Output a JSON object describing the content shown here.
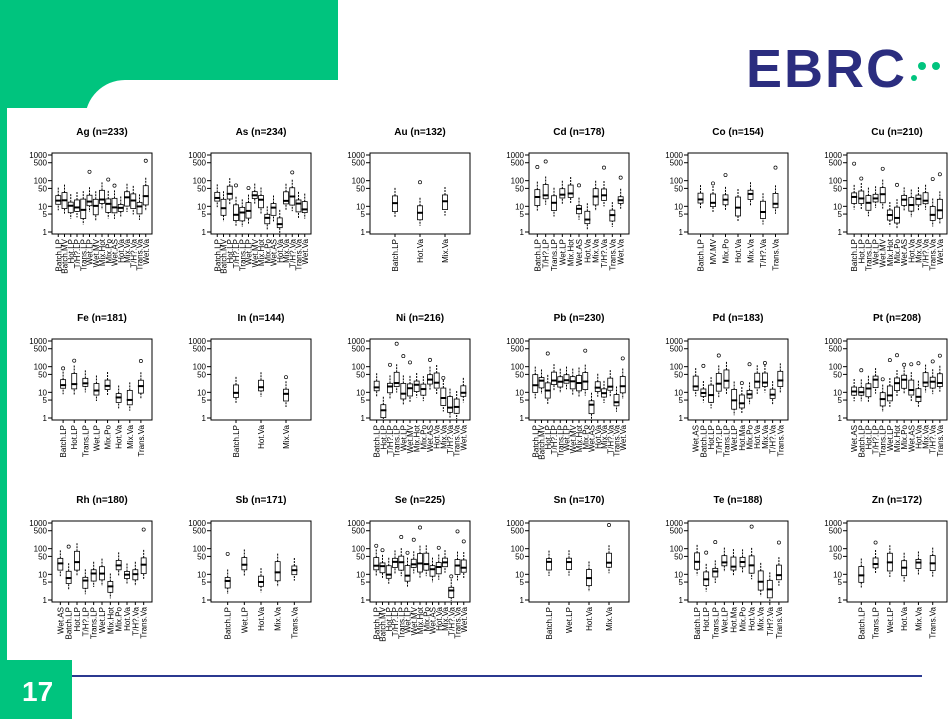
{
  "slide": {
    "page_number": "17"
  },
  "logo": {
    "text": "EBRC",
    "brand_color": "#2b2d7f",
    "accent_color": "#00c47e"
  },
  "colors": {
    "header_green": "#00c47e",
    "footer_line": "#2b3990"
  },
  "chart_data": [
    {
      "type": "boxplot",
      "title": "Ag (n=233)",
      "y_scale": "log",
      "yticks": [
        "1",
        "5",
        "10",
        "50",
        "100",
        "500",
        "1000"
      ],
      "categories": [
        "Batch.LP",
        "Batch.MV",
        "Hot.LP",
        "T/H?.LP",
        "Trans.LP",
        "Wet.LP",
        "Wet.MV",
        "Mix.Hot",
        "Mix.Po",
        "Wet.AS",
        "Hot.Va",
        "Mix.Va",
        "T/H?.Va",
        "Trans.Va",
        "Wet.Va"
      ]
    },
    {
      "type": "boxplot",
      "title": "As (n=234)",
      "y_scale": "log",
      "yticks": [
        "1",
        "5",
        "10",
        "50",
        "100",
        "500",
        "1000"
      ],
      "categories": [
        "Batch.LP",
        "Batch.MV",
        "Hot.LP",
        "T/H?.LP",
        "Trans.LP",
        "Wet.LP",
        "Wet.MV",
        "Mix.Hot",
        "Mix.Po",
        "Wet.AS",
        "Hot.Va",
        "Mix.Va",
        "T/H?.Va",
        "Trans.Va",
        "Wet.Va"
      ]
    },
    {
      "type": "boxplot",
      "title": "Au (n=132)",
      "y_scale": "log",
      "yticks": [
        "1",
        "5",
        "10",
        "50",
        "100",
        "500",
        "1000"
      ],
      "categories": [
        "Batch.LP",
        "Hot.Va",
        "Mix.Va"
      ]
    },
    {
      "type": "boxplot",
      "title": "Cd (n=178)",
      "y_scale": "log",
      "yticks": [
        "1",
        "5",
        "10",
        "50",
        "100",
        "500",
        "1000"
      ],
      "categories": [
        "Batch.LP",
        "T/H?.LP",
        "Trans.LP",
        "Wet.LP",
        "Mix.Hot",
        "Wet.AS",
        "Hot.Va",
        "Mix.Va",
        "T/H?.Va",
        "Trans.Va",
        "Wet.Va"
      ]
    },
    {
      "type": "boxplot",
      "title": "Co (n=154)",
      "y_scale": "log",
      "yticks": [
        "1",
        "5",
        "10",
        "50",
        "100",
        "500",
        "1000"
      ],
      "categories": [
        "Batch.LP",
        "MV.MV",
        "Mix.Po",
        "Hot.Va",
        "Mix.Va",
        "T/H?.Va",
        "Trans.Va"
      ]
    },
    {
      "type": "boxplot",
      "title": "Cu (n=210)",
      "y_scale": "log",
      "yticks": [
        "1",
        "5",
        "10",
        "50",
        "100",
        "500",
        "1000"
      ],
      "categories": [
        "Batch.LP",
        "Hot.LP",
        "Trans.LP",
        "Wet.LP",
        "Wet.MV",
        "Mix.Hot",
        "Mix.Po",
        "Wet.AS",
        "Hot.Va",
        "Mix.Va",
        "T/H?.Va",
        "Trans.Va",
        "Wet.Va"
      ]
    },
    {
      "type": "boxplot",
      "title": "Fe (n=181)",
      "y_scale": "log",
      "yticks": [
        "1",
        "5",
        "10",
        "50",
        "100",
        "500",
        "1000"
      ],
      "categories": [
        "Batch.LP",
        "Hot.LP",
        "Trans.LP",
        "Wet.LP",
        "Mix.Po",
        "Hot.Va",
        "Mix.Va",
        "Trans.Va"
      ]
    },
    {
      "type": "boxplot",
      "title": "In (n=144)",
      "y_scale": "log",
      "yticks": [
        "1",
        "5",
        "10",
        "50",
        "100",
        "500",
        "1000"
      ],
      "categories": [
        "Batch.LP",
        "Hot.Va",
        "Mix.Va"
      ]
    },
    {
      "type": "boxplot",
      "title": "Ni (n=216)",
      "y_scale": "log",
      "yticks": [
        "1",
        "5",
        "10",
        "50",
        "100",
        "500",
        "1000"
      ],
      "categories": [
        "Batch.LP",
        "Hot.LP",
        "T/H?.LP",
        "Trans.LP",
        "Wet.LP",
        "Wet.MV",
        "Mix.Hot",
        "Mix.Po",
        "Wet.AS",
        "Hot.Va",
        "Mix.Va",
        "T/H?.Va",
        "Trans.Va",
        "Wet.Va"
      ]
    },
    {
      "type": "boxplot",
      "title": "Pb (n=230)",
      "y_scale": "log",
      "yticks": [
        "1",
        "5",
        "10",
        "50",
        "100",
        "500",
        "1000"
      ],
      "categories": [
        "Batch.LP",
        "Batch.MV",
        "Hot.LP",
        "T/H?.LP",
        "Trans.LP",
        "Wet.LP",
        "Wet.MV",
        "Mix.Hot",
        "Mix.Po",
        "Wet.AS",
        "Hot.Va",
        "Mix.Va",
        "T/H?.Va",
        "Trans.Va",
        "Wet.Va"
      ]
    },
    {
      "type": "boxplot",
      "title": "Pd (n=183)",
      "y_scale": "log",
      "yticks": [
        "1",
        "5",
        "10",
        "50",
        "100",
        "500",
        "1000"
      ],
      "categories": [
        "Wet.AS",
        "Batch.LP",
        "Hot.LP",
        "T/H?.LP",
        "Trans.LP",
        "Wet.LP",
        "Hot.Ma",
        "Mix.Po",
        "Hot.Va",
        "Mix.Va",
        "T/H?.Va",
        "Trans.Va"
      ]
    },
    {
      "type": "boxplot",
      "title": "Pt (n=208)",
      "y_scale": "log",
      "yticks": [
        "1",
        "5",
        "10",
        "50",
        "100",
        "500",
        "1000"
      ],
      "categories": [
        "Wet.AS",
        "Batch.LP",
        "Hot.LP",
        "T/H?.LP",
        "Trans.LP",
        "Wet.LP",
        "Mix.Hot",
        "Mix.Po",
        "Wet.AS",
        "Hot.Va",
        "Mix.Va",
        "T/H?.Va",
        "Trans.Va"
      ]
    },
    {
      "type": "boxplot",
      "title": "Rh (n=180)",
      "y_scale": "log",
      "yticks": [
        "1",
        "5",
        "10",
        "50",
        "100",
        "500",
        "1000"
      ],
      "categories": [
        "Wet.AS",
        "Batch.LP",
        "Hot.LP",
        "T/H?.LP",
        "Trans.LP",
        "Wet.LP",
        "Mix.Hot",
        "Mix.Po",
        "Hot.Va",
        "T/H?.Va",
        "Trans.Va"
      ]
    },
    {
      "type": "boxplot",
      "title": "Sb (n=171)",
      "y_scale": "log",
      "yticks": [
        "1",
        "5",
        "10",
        "50",
        "100",
        "500",
        "1000"
      ],
      "categories": [
        "Batch.LP",
        "Wet.LP",
        "Hot.Va",
        "Mix.Va",
        "Trans.Va"
      ]
    },
    {
      "type": "boxplot",
      "title": "Se (n=225)",
      "y_scale": "log",
      "yticks": [
        "1",
        "5",
        "10",
        "50",
        "100",
        "500",
        "1000"
      ],
      "categories": [
        "Batch.LP",
        "Batch.MV",
        "Hot.LP",
        "T/H?.LP",
        "Trans.LP",
        "Wet.LP",
        "Wet.MV",
        "Mix.Hot",
        "Mix.Po",
        "Wet.AS",
        "Hot.Va",
        "Mix.Va",
        "T/H?.Va",
        "Trans.Va",
        "Wet.Va"
      ]
    },
    {
      "type": "boxplot",
      "title": "Sn (n=170)",
      "y_scale": "log",
      "yticks": [
        "1",
        "5",
        "10",
        "50",
        "100",
        "500",
        "1000"
      ],
      "categories": [
        "Batch.LP",
        "Wet.LP",
        "Hot.Va",
        "Mix.Va"
      ]
    },
    {
      "type": "boxplot",
      "title": "Te (n=188)",
      "y_scale": "log",
      "yticks": [
        "1",
        "5",
        "10",
        "50",
        "100",
        "500",
        "1000"
      ],
      "categories": [
        "Batch.LP",
        "Hot.LP",
        "Trans.LP",
        "Wet.LP",
        "Hot.Ma",
        "Mix.Po",
        "Hot.Va",
        "Mix.Va",
        "T/H?.Va",
        "Trans.Va"
      ]
    },
    {
      "type": "boxplot",
      "title": "Zn (n=172)",
      "y_scale": "log",
      "yticks": [
        "1",
        "5",
        "10",
        "50",
        "100",
        "500",
        "1000"
      ],
      "categories": [
        "Batch.LP",
        "Trans.LP",
        "Wet.LP",
        "Hot.Va",
        "Mix.Va",
        "Trans.Va"
      ]
    }
  ]
}
